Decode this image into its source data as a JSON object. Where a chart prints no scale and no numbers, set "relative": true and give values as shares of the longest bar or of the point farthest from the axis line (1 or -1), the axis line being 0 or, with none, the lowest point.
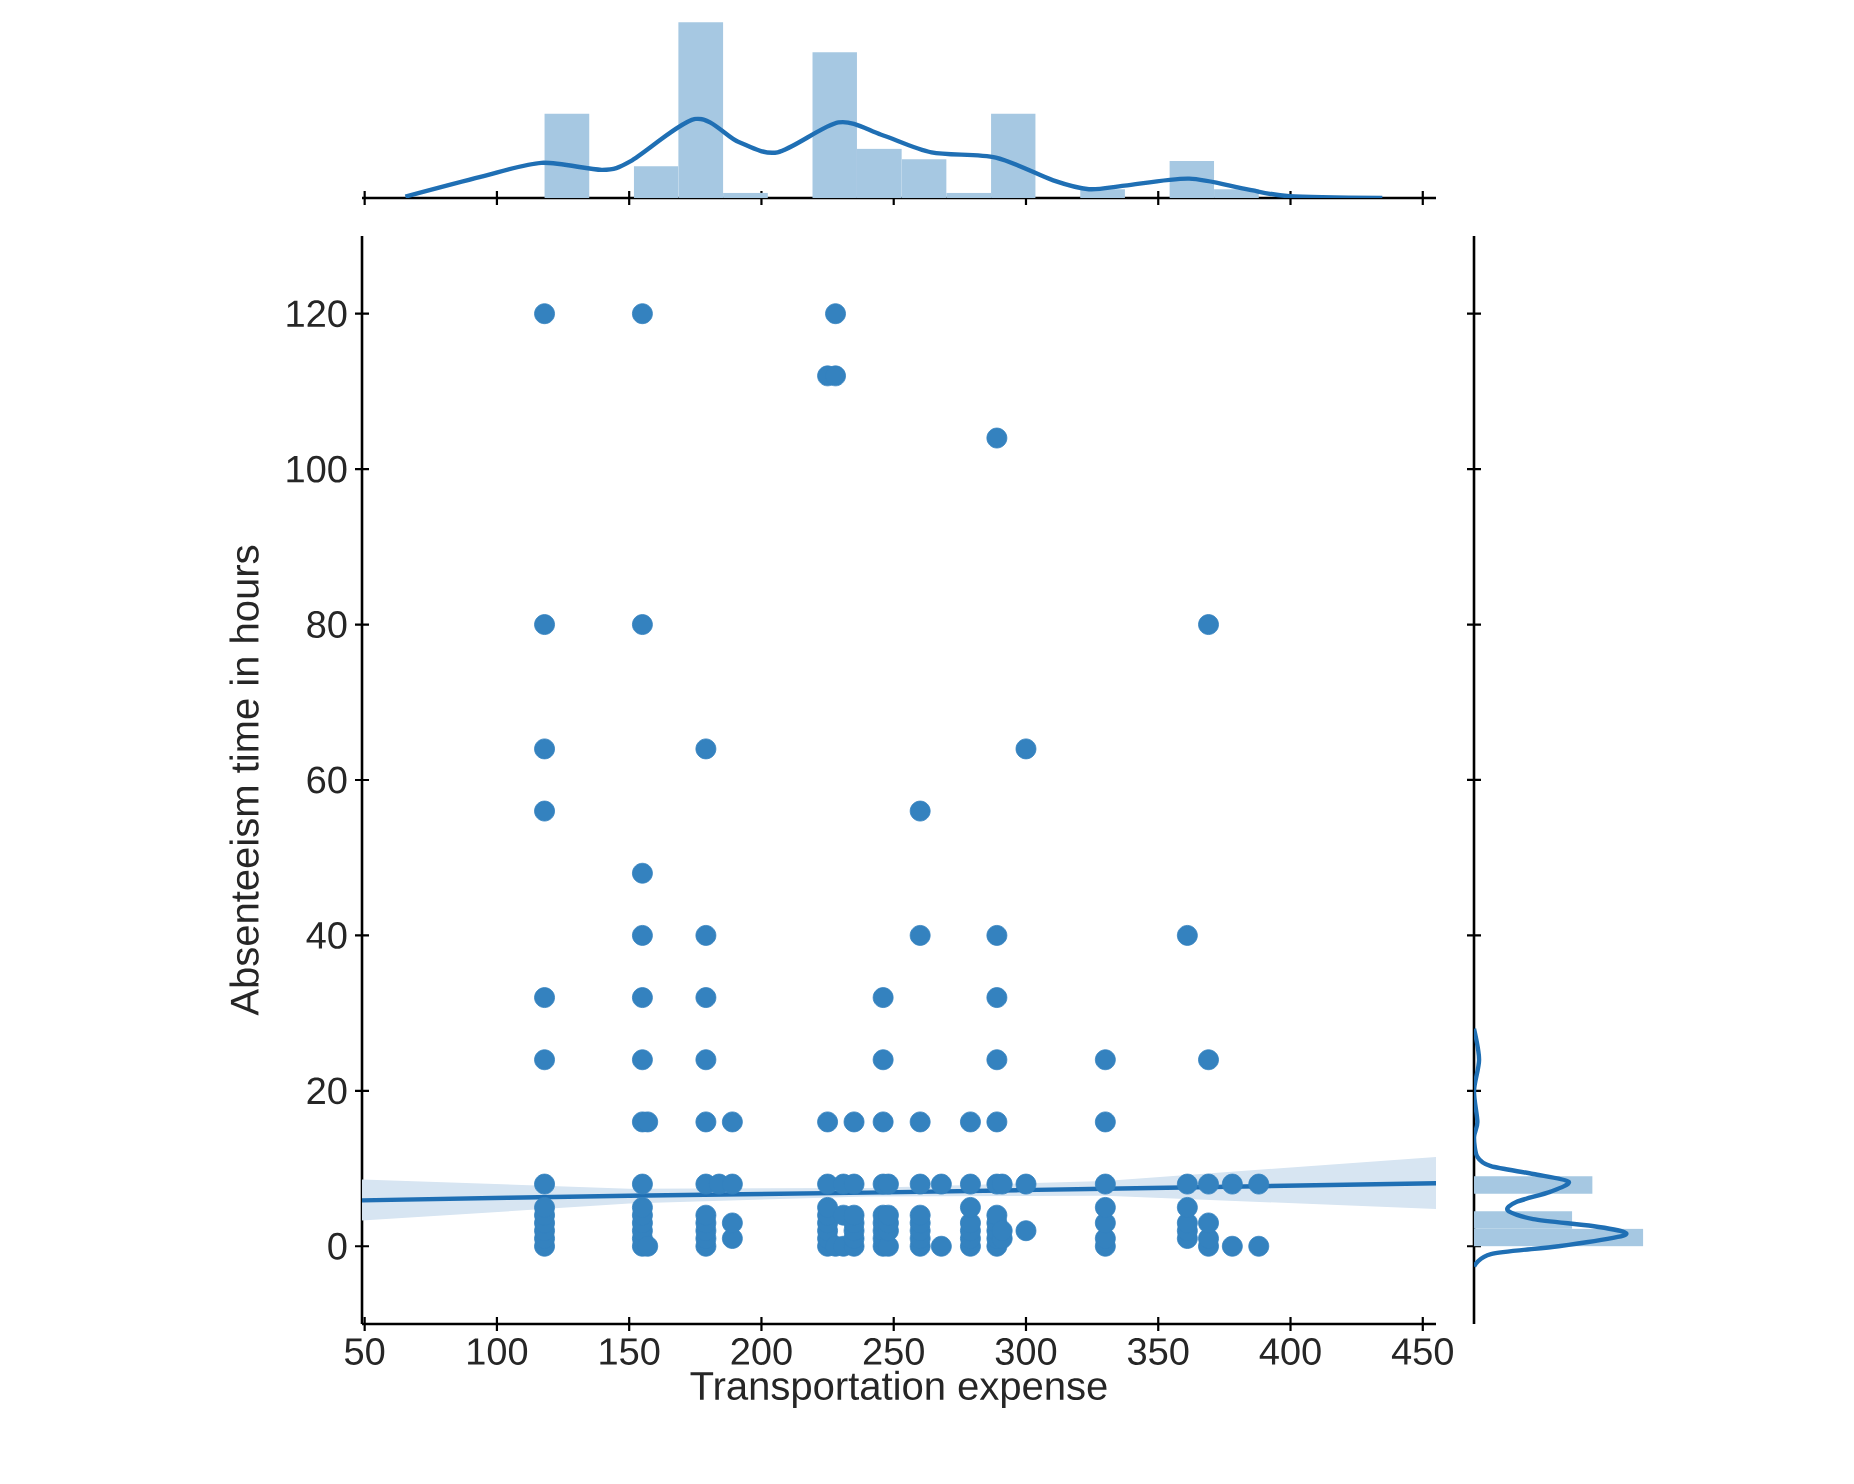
{
  "chart_data": [
    {
      "type": "scatter",
      "xlabel": "Transportation expense",
      "ylabel": "Absenteeism time in hours",
      "xlim": [
        49,
        455
      ],
      "ylim": [
        -10,
        130
      ],
      "xticks": [
        50,
        100,
        150,
        200,
        250,
        300,
        350,
        400,
        450
      ],
      "yticks": [
        0,
        20,
        40,
        60,
        80,
        100,
        120
      ],
      "series": [
        {
          "color": "#3482bf",
          "marker": "circle",
          "x": [
            118,
            155,
            228,
            225,
            228,
            289,
            118,
            155,
            369,
            118,
            179,
            300,
            118,
            260,
            155,
            155,
            179,
            260,
            289,
            361,
            118,
            155,
            179,
            246,
            289,
            118,
            155,
            179,
            246,
            289,
            330,
            369,
            155,
            157,
            179,
            189,
            225,
            235,
            246,
            260,
            279,
            289,
            330,
            118,
            155,
            179,
            184,
            189,
            225,
            231,
            235,
            246,
            248,
            260,
            268,
            279,
            289,
            291,
            300,
            330,
            361,
            369,
            378,
            388,
            118,
            118,
            118,
            118,
            118,
            118,
            155,
            155,
            155,
            155,
            155,
            155,
            157,
            179,
            179,
            179,
            179,
            179,
            189,
            189,
            225,
            225,
            225,
            225,
            225,
            225,
            228,
            231,
            231,
            235,
            235,
            235,
            235,
            235,
            246,
            246,
            246,
            246,
            246,
            248,
            248,
            248,
            248,
            260,
            260,
            260,
            260,
            260,
            268,
            279,
            279,
            279,
            279,
            279,
            289,
            289,
            289,
            289,
            289,
            291,
            291,
            300,
            330,
            330,
            330,
            330,
            361,
            361,
            361,
            361,
            369,
            369,
            369,
            378,
            388
          ],
          "values": [
            120,
            120,
            120,
            112,
            112,
            104,
            80,
            80,
            80,
            64,
            64,
            64,
            56,
            56,
            48,
            40,
            40,
            40,
            40,
            40,
            32,
            32,
            32,
            32,
            32,
            24,
            24,
            24,
            24,
            24,
            24,
            24,
            16,
            16,
            16,
            16,
            16,
            16,
            16,
            16,
            16,
            16,
            16,
            8,
            8,
            8,
            8,
            8,
            8,
            8,
            8,
            8,
            8,
            8,
            8,
            8,
            8,
            8,
            8,
            8,
            8,
            8,
            8,
            8,
            0,
            1,
            2,
            3,
            4,
            5,
            0,
            1,
            2,
            3,
            4,
            5,
            0,
            0,
            1,
            2,
            3,
            4,
            1,
            3,
            0,
            1,
            2,
            3,
            4,
            5,
            0,
            0,
            4,
            0,
            1,
            2,
            3,
            4,
            0,
            1,
            2,
            3,
            4,
            0,
            2,
            3,
            4,
            0,
            1,
            2,
            3,
            4,
            0,
            0,
            1,
            2,
            3,
            5,
            0,
            1,
            2,
            3,
            4,
            1,
            2,
            2,
            0,
            1,
            3,
            5,
            1,
            2,
            3,
            5,
            0,
            1,
            3,
            0,
            0
          ]
        },
        {
          "type": "line",
          "color": "#1f6fb4",
          "x": [
            49,
            150,
            240,
            330,
            455
          ],
          "values": [
            5.9,
            6.5,
            6.9,
            7.4,
            8.1
          ],
          "lower": [
            3.3,
            5.5,
            6.4,
            6.5,
            4.8
          ],
          "upper": [
            8.6,
            7.4,
            7.5,
            8.4,
            11.5
          ]
        }
      ]
    },
    {
      "type": "histogram",
      "relative": true,
      "xlim": [
        49,
        455
      ],
      "xticks": [
        50,
        100,
        150,
        200,
        250,
        300,
        350,
        400,
        450
      ],
      "tick_labels": false,
      "series": [
        {
          "color": "#a6c8e2",
          "bins": [
            118,
            134.9,
            151.8,
            168.6,
            185.5,
            202.4,
            219.3,
            236.1,
            253,
            269.9,
            286.8,
            303.6,
            320.5,
            337.4,
            354.3,
            371.1,
            388
          ],
          "values": [
            0.48,
            0,
            0.18,
            1,
            0.03,
            0,
            0.83,
            0.28,
            0.22,
            0.03,
            0.48,
            0,
            0.05,
            0,
            0.21,
            0.05
          ]
        },
        {
          "type": "line",
          "color": "#1f6fb4",
          "x": [
            65.4,
            93.8,
            116.8,
            139.8,
            150.6,
            175,
            191.2,
            206.1,
            229.1,
            245.3,
            264.3,
            288.6,
            310.3,
            323.8,
            337.3,
            361.7,
            383.3,
            399.6,
            434.7
          ],
          "values": [
            0.008,
            0.12,
            0.2,
            0.16,
            0.21,
            0.45,
            0.32,
            0.26,
            0.43,
            0.36,
            0.26,
            0.23,
            0.1,
            0.05,
            0.07,
            0.11,
            0.05,
            0.01,
            0
          ]
        }
      ]
    },
    {
      "type": "histogram",
      "relative": true,
      "orientation": "horizontal",
      "ylim": [
        -10,
        130
      ],
      "yticks": [
        0,
        20,
        40,
        60,
        80,
        100,
        120
      ],
      "tick_labels": false,
      "series": [
        {
          "color": "#a6c8e2",
          "bins": [
            0,
            2.25,
            4.5,
            6.75,
            9
          ],
          "values": [
            1,
            0.58,
            0,
            0.7
          ]
        },
        {
          "type": "line",
          "color": "#1f6fb4",
          "x": [
            -2.6,
            -1,
            0,
            1.2,
            1.8,
            2.6,
            3.5,
            4.6,
            5.7,
            7,
            8.3,
            9.3,
            10.3,
            11.5,
            14,
            16,
            20,
            24,
            28
          ],
          "values": [
            0,
            0.1,
            0.5,
            0.85,
            0.89,
            0.7,
            0.35,
            0.2,
            0.25,
            0.45,
            0.56,
            0.35,
            0.1,
            0.02,
            0,
            0.02,
            0,
            0.03,
            0
          ]
        }
      ]
    }
  ]
}
